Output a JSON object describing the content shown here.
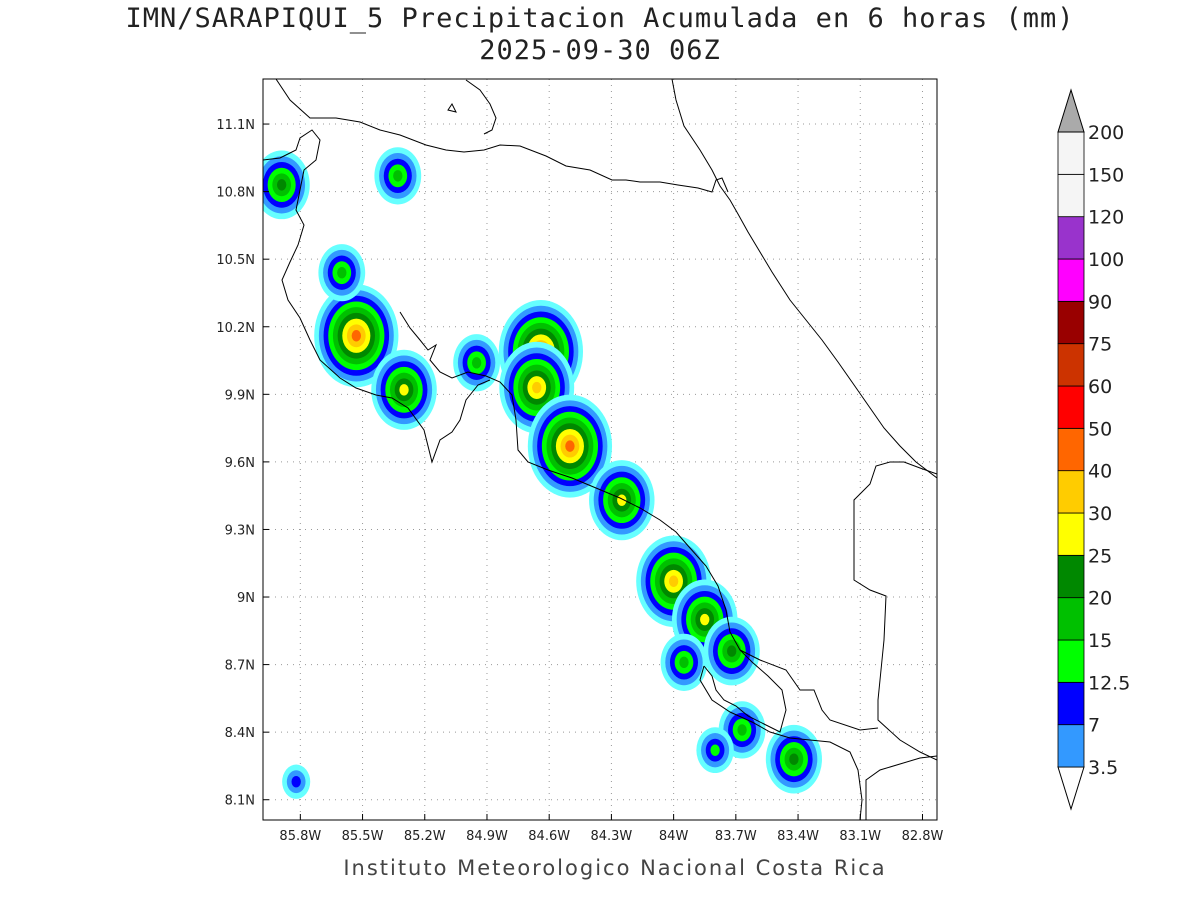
{
  "title": {
    "line1": "IMN/SARAPIQUI_5 Precipitacion Acumulada en 6 horas (mm)",
    "line2": "2025-09-30 06Z"
  },
  "credit": "Instituto Meteorologico Nacional Costa Rica",
  "map": {
    "lon_range": [
      -85.98,
      -82.73
    ],
    "lat_range": [
      8.01,
      11.3
    ],
    "lon_ticks": [
      {
        "value": -85.8,
        "label": "85.8W"
      },
      {
        "value": -85.5,
        "label": "85.5W"
      },
      {
        "value": -85.2,
        "label": "85.2W"
      },
      {
        "value": -84.9,
        "label": "84.9W"
      },
      {
        "value": -84.6,
        "label": "84.6W"
      },
      {
        "value": -84.3,
        "label": "84.3W"
      },
      {
        "value": -84.0,
        "label": "84W"
      },
      {
        "value": -83.7,
        "label": "83.7W"
      },
      {
        "value": -83.4,
        "label": "83.4W"
      },
      {
        "value": -83.1,
        "label": "83.1W"
      },
      {
        "value": -82.8,
        "label": "82.8W"
      }
    ],
    "lat_ticks": [
      {
        "value": 8.1,
        "label": "8.1N"
      },
      {
        "value": 8.4,
        "label": "8.4N"
      },
      {
        "value": 8.7,
        "label": "8.7N"
      },
      {
        "value": 9.0,
        "label": "9N"
      },
      {
        "value": 9.3,
        "label": "9.3N"
      },
      {
        "value": 9.6,
        "label": "9.6N"
      },
      {
        "value": 9.9,
        "label": "9.9N"
      },
      {
        "value": 10.2,
        "label": "10.2N"
      },
      {
        "value": 10.5,
        "label": "10.5N"
      },
      {
        "value": 10.8,
        "label": "10.8N"
      },
      {
        "value": 11.1,
        "label": "11.1N"
      }
    ],
    "grid": "dotted",
    "precip_cells": [
      {
        "lon": -85.89,
        "lat": 10.83,
        "level": 5
      },
      {
        "lon": -85.53,
        "lat": 10.16,
        "level": 8
      },
      {
        "lon": -85.6,
        "lat": 10.44,
        "level": 4
      },
      {
        "lon": -85.33,
        "lat": 10.87,
        "level": 4
      },
      {
        "lon": -85.3,
        "lat": 9.92,
        "level": 6
      },
      {
        "lon": -84.95,
        "lat": 10.04,
        "level": 4
      },
      {
        "lon": -84.64,
        "lat": 10.09,
        "level": 8
      },
      {
        "lon": -84.66,
        "lat": 9.93,
        "level": 7
      },
      {
        "lon": -84.5,
        "lat": 9.67,
        "level": 8
      },
      {
        "lon": -84.25,
        "lat": 9.43,
        "level": 6
      },
      {
        "lon": -84.0,
        "lat": 9.07,
        "level": 7
      },
      {
        "lon": -83.85,
        "lat": 8.9,
        "level": 6
      },
      {
        "lon": -83.72,
        "lat": 8.76,
        "level": 5
      },
      {
        "lon": -83.95,
        "lat": 8.71,
        "level": 4
      },
      {
        "lon": -83.67,
        "lat": 8.41,
        "level": 4
      },
      {
        "lon": -83.42,
        "lat": 8.28,
        "level": 5
      },
      {
        "lon": -83.8,
        "lat": 8.32,
        "level": 3
      },
      {
        "lon": -85.82,
        "lat": 8.18,
        "level": 2
      }
    ]
  },
  "legend": {
    "levels": [
      {
        "label": "3.5",
        "color": "#66ffff"
      },
      {
        "label": "7",
        "color": "#3399ff"
      },
      {
        "label": "12.5",
        "color": "#0000ff"
      },
      {
        "label": "15",
        "color": "#00ff00"
      },
      {
        "label": "20",
        "color": "#00c000"
      },
      {
        "label": "25",
        "color": "#008800"
      },
      {
        "label": "30",
        "color": "#ffff00"
      },
      {
        "label": "40",
        "color": "#ffcc00"
      },
      {
        "label": "50",
        "color": "#ff6600"
      },
      {
        "label": "60",
        "color": "#ff0000"
      },
      {
        "label": "75",
        "color": "#cc3300"
      },
      {
        "label": "90",
        "color": "#990000"
      },
      {
        "label": "100",
        "color": "#ff00ff"
      },
      {
        "label": "120",
        "color": "#9933cc"
      },
      {
        "label": "150",
        "color": "#f5f5f5"
      },
      {
        "label": "200",
        "color": "#aaaaaa"
      }
    ]
  }
}
